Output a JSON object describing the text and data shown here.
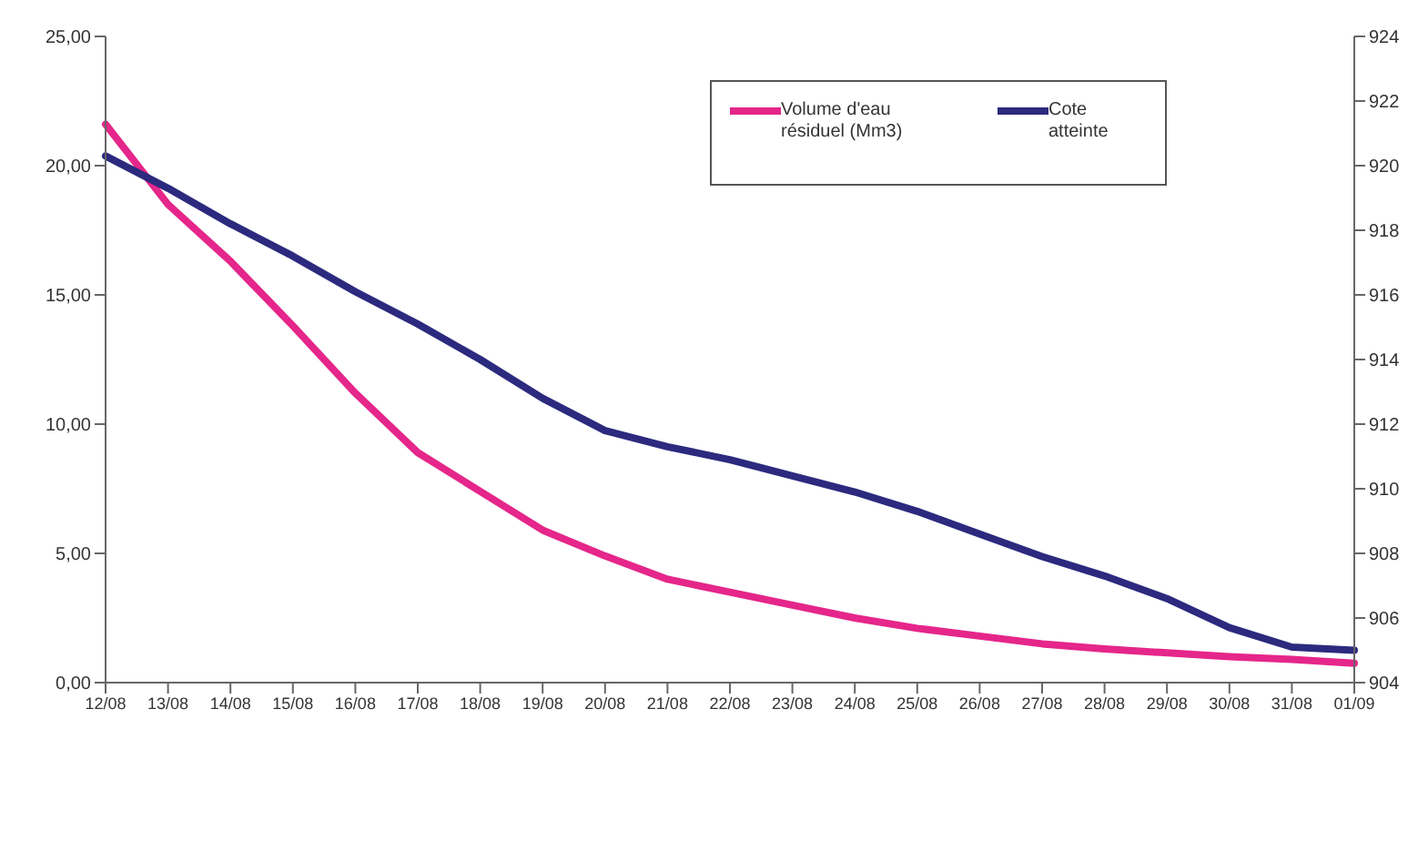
{
  "chart_data": {
    "type": "line",
    "categories": [
      "12/08",
      "13/08",
      "14/08",
      "15/08",
      "16/08",
      "17/08",
      "18/08",
      "19/08",
      "20/08",
      "21/08",
      "22/08",
      "23/08",
      "24/08",
      "25/08",
      "26/08",
      "27/08",
      "28/08",
      "29/08",
      "30/08",
      "31/08",
      "01/09"
    ],
    "series": [
      {
        "name": "Volume d'eau résiduel (Mm3)",
        "color": "#e5268a",
        "values": [
          21.6,
          18.5,
          16.3,
          13.8,
          11.2,
          8.9,
          7.4,
          5.9,
          4.9,
          4.0,
          3.5,
          3.0,
          2.5,
          2.1,
          1.8,
          1.5,
          1.3,
          1.15,
          1.0,
          0.9,
          0.75
        ]
      },
      {
        "name": "Cote atteinte",
        "color": "#2b2a7e",
        "axis": "y2",
        "values": [
          920.3,
          919.3,
          918.2,
          917.2,
          916.1,
          915.1,
          914.0,
          912.8,
          911.8,
          911.3,
          910.9,
          910.4,
          909.9,
          909.3,
          908.6,
          907.9,
          907.3,
          906.6,
          905.7,
          905.1,
          905.0
        ]
      }
    ],
    "ylim": [
      0,
      25
    ],
    "yticks": [
      {
        "value": 0,
        "label": "0,00"
      },
      {
        "value": 5,
        "label": "5,00"
      },
      {
        "value": 10,
        "label": "10,00"
      },
      {
        "value": 15,
        "label": "15,00"
      },
      {
        "value": 20,
        "label": "20,00"
      },
      {
        "value": 25,
        "label": "25,00"
      }
    ],
    "y2lim": [
      904,
      924
    ],
    "y2ticks": [
      904,
      906,
      908,
      910,
      912,
      914,
      916,
      918,
      920,
      922,
      924
    ],
    "grid": false,
    "legend": "top right"
  }
}
